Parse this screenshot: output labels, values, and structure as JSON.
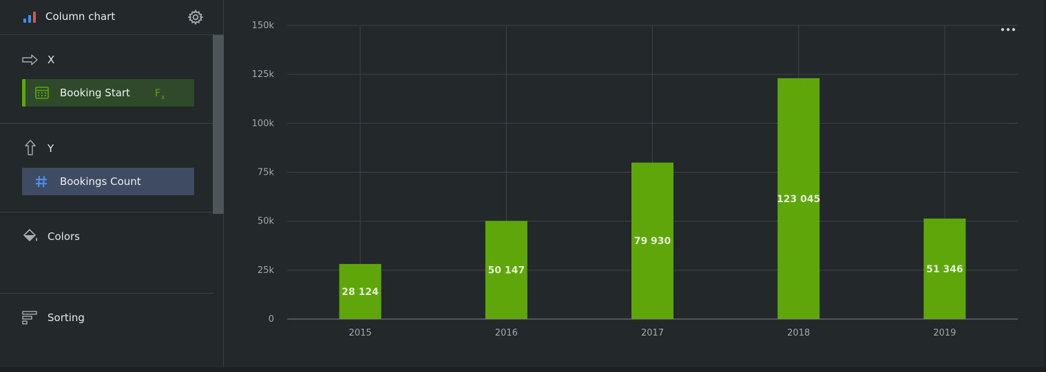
{
  "sidebar": {
    "chart_type_label": "Column chart",
    "x_section": {
      "label": "X",
      "field": {
        "label": "Booking Start",
        "icon": "calendar-icon",
        "color": "#5da80a"
      }
    },
    "y_section": {
      "label": "Y",
      "field": {
        "label": "Bookings Count",
        "icon": "hash-icon",
        "color": "#3f4b63"
      }
    },
    "colors_label": "Colors",
    "sorting_label": "Sorting"
  },
  "colors": {
    "accent": "#5da80a",
    "bar": "#5ea60a",
    "background": "#23282a",
    "grid": "#3d4447"
  },
  "chart_data": {
    "type": "bar",
    "categories": [
      "2015",
      "2016",
      "2017",
      "2018",
      "2019"
    ],
    "values": [
      28124,
      50147,
      79930,
      123045,
      51346
    ],
    "data_labels": [
      "28 124",
      "50 147",
      "79 930",
      "123 045",
      "51 346"
    ],
    "yticks": [
      0,
      25000,
      50000,
      75000,
      100000,
      125000,
      150000
    ],
    "ytick_labels": [
      "0",
      "25k",
      "50k",
      "75k",
      "100k",
      "125k",
      "150k"
    ],
    "ylim": [
      0,
      150000
    ],
    "grid": true,
    "title": "",
    "xlabel": "",
    "ylabel": ""
  }
}
